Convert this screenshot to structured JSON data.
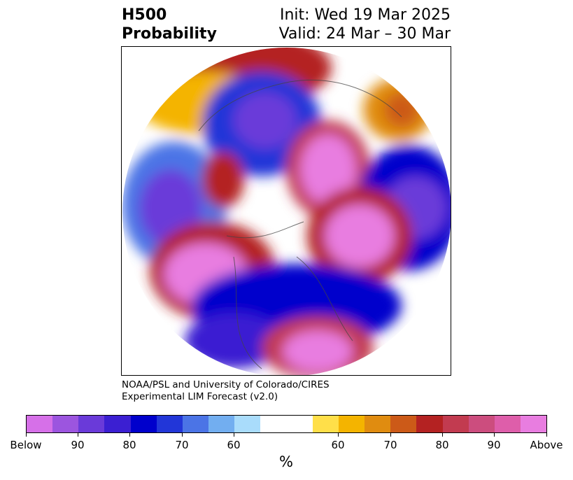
{
  "header": {
    "title_line1": "H500",
    "title_line2": "Probability",
    "init_text": "Init: Wed 19 Mar 2025",
    "valid_text": "Valid: 24 Mar – 30 Mar"
  },
  "credit": {
    "line1": "NOAA/PSL and University of Colorado/CIRES",
    "line2": "Experimental LIM Forecast (v2.0)"
  },
  "colorbar": {
    "colors": [
      "#d670e8",
      "#9c55df",
      "#6a3ad9",
      "#3b1fd2",
      "#0000cc",
      "#2236d8",
      "#4b74e6",
      "#72aef0",
      "#a9dcfb",
      "#ffffff",
      "#ffffff",
      "#ffdf49",
      "#f4b400",
      "#e08c10",
      "#cc5a18",
      "#b42222",
      "#c23b50",
      "#cc4d7e",
      "#de5eaa",
      "#e87de0"
    ],
    "tick_labels": [
      "Below",
      "90",
      "80",
      "70",
      "60",
      "60",
      "70",
      "80",
      "90",
      "Above"
    ],
    "unit": "%"
  }
}
